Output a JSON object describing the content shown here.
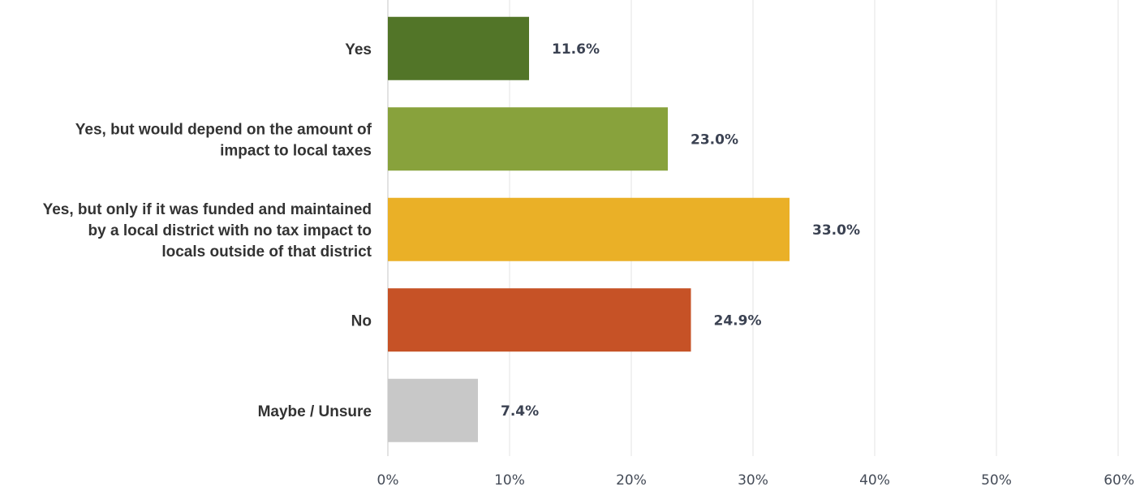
{
  "chart_data": {
    "type": "bar",
    "orientation": "horizontal",
    "title": "",
    "xlabel": "",
    "ylabel": "",
    "categories": [
      [
        "Yes"
      ],
      [
        "Yes, but would depend on the amount of",
        "impact to local taxes"
      ],
      [
        "Yes, but only if it was funded and maintained",
        "by a local district with no tax impact to",
        "locals outside of that district"
      ],
      [
        "No"
      ],
      [
        "Maybe / Unsure"
      ]
    ],
    "values": [
      11.6,
      23.0,
      33.0,
      24.9,
      7.4
    ],
    "value_labels": [
      "11.6%",
      "23.0%",
      "33.0%",
      "24.9%",
      "7.4%"
    ],
    "colors": [
      "#527528",
      "#88a23c",
      "#eab027",
      "#c65226",
      "#c8c8c8"
    ],
    "xlim": [
      0,
      60
    ],
    "xticks": [
      0,
      10,
      20,
      30,
      40,
      50,
      60
    ],
    "xtick_labels": [
      "0%",
      "10%",
      "20%",
      "30%",
      "40%",
      "50%",
      "60%"
    ],
    "grid": "vertical",
    "legend": "none"
  }
}
